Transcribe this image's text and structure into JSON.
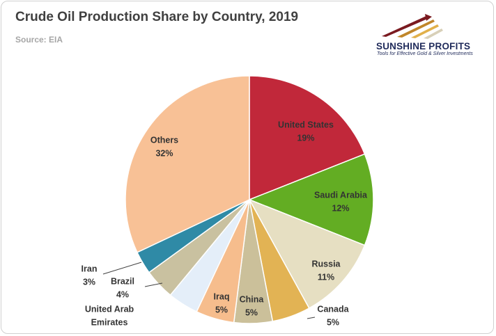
{
  "title": "Crude Oil Production Share by Country, 2019",
  "subtitle": "Source: EIA",
  "logo": {
    "name": "SUNSHINE PROFITS",
    "tagline": "Tools for Effective Gold & Silver Investments"
  },
  "chart_data": {
    "type": "pie",
    "title": "Crude Oil Production Share by Country, 2019",
    "start": "12 o'clock",
    "direction": "clockwise",
    "slices": [
      {
        "label": "United States",
        "value": 19,
        "display": "19%",
        "color": "#c1283a",
        "label_color": "#333333"
      },
      {
        "label": "Saudi Arabia",
        "value": 12,
        "display": "12%",
        "color": "#63ad23",
        "label_color": "#333333"
      },
      {
        "label": "Russia",
        "value": 11,
        "display": "11%",
        "color": "#e6dfc2",
        "label_color": "#333333"
      },
      {
        "label": "Canada",
        "value": 5,
        "display": "5%",
        "color": "#e2b354",
        "label_color": "#333333"
      },
      {
        "label": "China",
        "value": 5,
        "display": "5%",
        "color": "#cbc09a",
        "label_color": "#333333"
      },
      {
        "label": "Iraq",
        "value": 5,
        "display": "5%",
        "color": "#f6bd8d",
        "label_color": "#333333"
      },
      {
        "label": "United Arab Emirates",
        "value": 4,
        "display": "",
        "color": "#e4eef9",
        "label_color": "#333333"
      },
      {
        "label": "Brazil",
        "value": 4,
        "display": "4%",
        "color": "#c9c1a0",
        "label_color": "#333333"
      },
      {
        "label": "Iran",
        "value": 3,
        "display": "3%",
        "color": "#2f8aa6",
        "label_color": "#333333"
      },
      {
        "label": "Others",
        "value": 32,
        "display": "32%",
        "color": "#f8c196",
        "label_color": "#333333"
      }
    ]
  }
}
